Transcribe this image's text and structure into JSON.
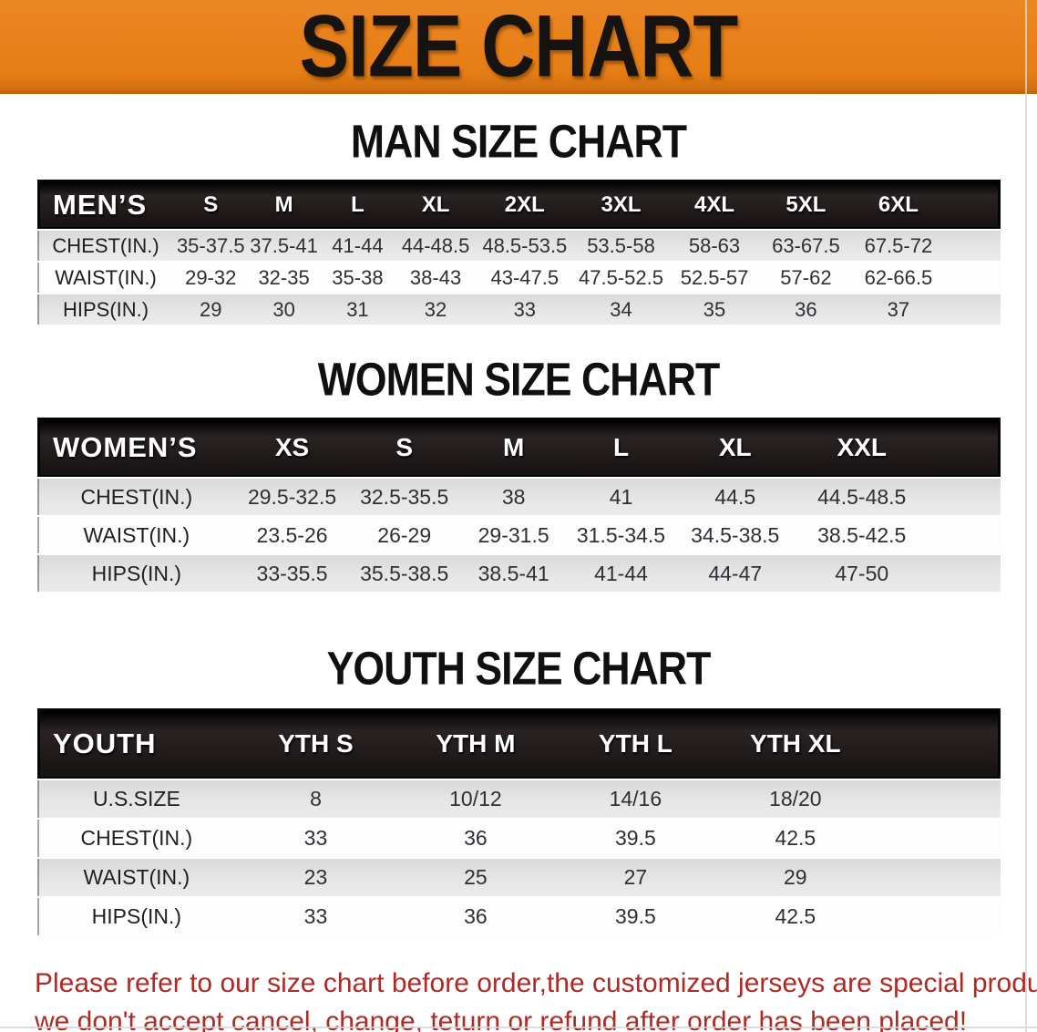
{
  "banner": {
    "title": "SIZE CHART"
  },
  "colors": {
    "banner_orange": "#e67d15",
    "header_black": "#1d1818",
    "row_gray": "#e2e2e2",
    "row_white": "#fdfdfd",
    "disclaimer_red": "#ad2a25"
  },
  "sections": [
    {
      "heading": "MAN SIZE CHART",
      "table": {
        "header_label": "MEN’S",
        "sizes": [
          "S",
          "M",
          "L",
          "XL",
          "2XL",
          "3XL",
          "4XL",
          "5XL",
          "6XL"
        ],
        "rows": [
          {
            "label": "CHEST(IN.)",
            "values": [
              "35-37.5",
              "37.5-41",
              "41-44",
              "44-48.5",
              "48.5-53.5",
              "53.5-58",
              "58-63",
              "63-67.5",
              "67.5-72"
            ]
          },
          {
            "label": "WAIST(IN.)",
            "values": [
              "29-32",
              "32-35",
              "35-38",
              "38-43",
              "43-47.5",
              "47.5-52.5",
              "52.5-57",
              "57-62",
              "62-66.5"
            ]
          },
          {
            "label": "HIPS(IN.)",
            "values": [
              "29",
              "30",
              "31",
              "32",
              "33",
              "34",
              "35",
              "36",
              "37"
            ]
          }
        ]
      }
    },
    {
      "heading": "WOMEN SIZE CHART",
      "table": {
        "header_label": "WOMEN’S",
        "sizes": [
          "XS",
          "S",
          "M",
          "L",
          "XL",
          "XXL"
        ],
        "rows": [
          {
            "label": "CHEST(IN.)",
            "values": [
              "29.5-32.5",
              "32.5-35.5",
              "38",
              "41",
              "44.5",
              "44.5-48.5"
            ]
          },
          {
            "label": "WAIST(IN.)",
            "values": [
              "23.5-26",
              "26-29",
              "29-31.5",
              "31.5-34.5",
              "34.5-38.5",
              "38.5-42.5"
            ]
          },
          {
            "label": "HIPS(IN.)",
            "values": [
              "33-35.5",
              "35.5-38.5",
              "38.5-41",
              "41-44",
              "44-47",
              "47-50"
            ]
          }
        ]
      }
    },
    {
      "heading": "YOUTH SIZE CHART",
      "table": {
        "header_label": "YOUTH",
        "sizes": [
          "YTH S",
          "YTH M",
          "YTH L",
          "YTH XL"
        ],
        "rows": [
          {
            "label": "U.S.SIZE",
            "values": [
              "8",
              "10/12",
              "14/16",
              "18/20"
            ]
          },
          {
            "label": "CHEST(IN.)",
            "values": [
              "33",
              "36",
              "39.5",
              "42.5"
            ]
          },
          {
            "label": "WAIST(IN.)",
            "values": [
              "23",
              "25",
              "27",
              "29"
            ]
          },
          {
            "label": "HIPS(IN.)",
            "values": [
              "33",
              "36",
              "39.5",
              "42.5"
            ]
          }
        ]
      }
    }
  ],
  "disclaimer": {
    "line1": "Please refer to our size chart before order,the customized jerseys are special products,",
    "line2": "we don't accept cancel, change, teturn or refund after order has been placed!"
  }
}
